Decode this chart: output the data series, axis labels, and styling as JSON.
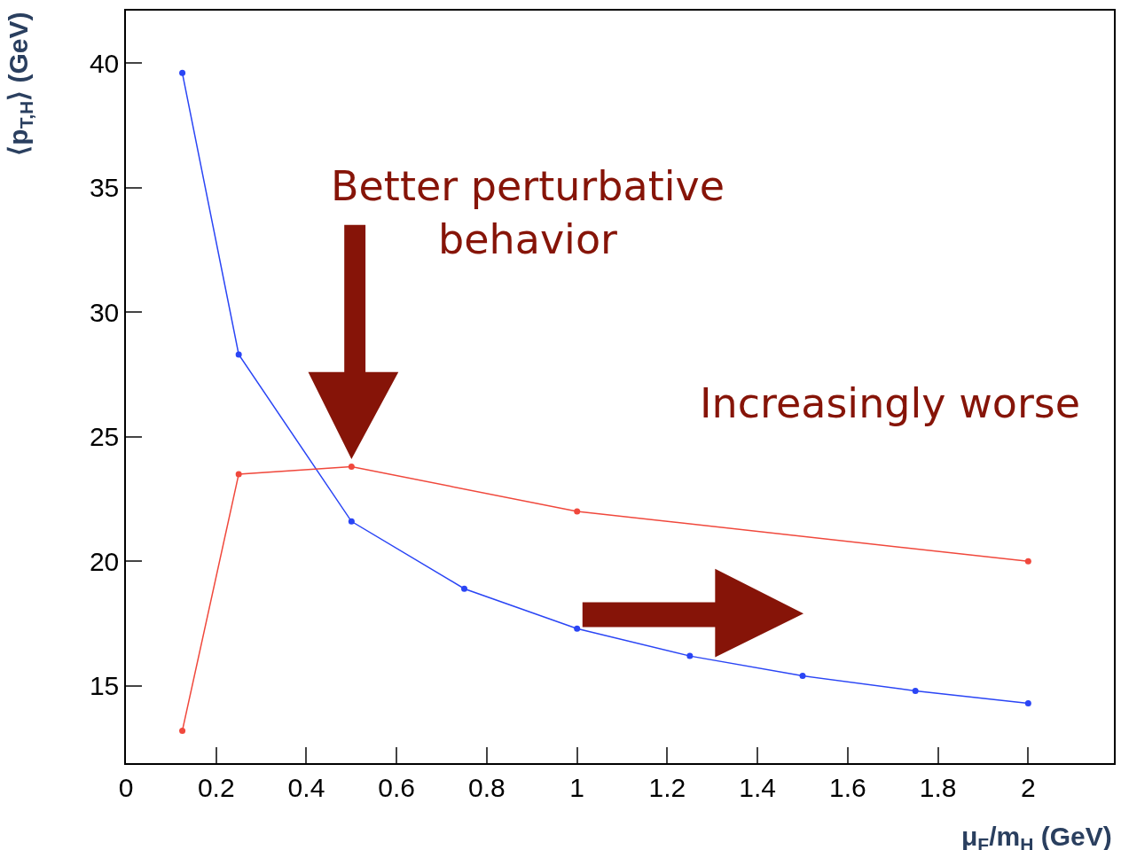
{
  "chart_data": {
    "type": "line",
    "xlabel": "μ$_{F}$/m$_{H}$ (GeV)",
    "ylabel": "⟨p$_{T,H}$⟩ (GeV)",
    "series": [
      {
        "color": "#2a45f5",
        "x": [
          0.125,
          0.25,
          0.5,
          0.75,
          1,
          1.25,
          1.5,
          1.75,
          2
        ],
        "values": [
          39.6,
          28.3,
          21.6,
          18.9,
          17.3,
          16.2,
          15.4,
          14.8,
          14.3
        ]
      },
      {
        "color": "#f0483c",
        "x": [
          0.125,
          0.25,
          0.5,
          1,
          2
        ],
        "values": [
          13.2,
          23.5,
          23.8,
          22.0,
          20.0
        ]
      }
    ],
    "xlim": [
      0,
      2.19
    ],
    "ylim": [
      11.9,
      42.1
    ],
    "xticks": [
      0,
      0.2,
      0.4,
      0.6,
      0.8,
      1,
      1.2,
      1.4,
      1.6,
      1.8,
      2
    ],
    "yticks": [
      15,
      20,
      25,
      30,
      35,
      40
    ],
    "marker": "circle",
    "line_style": "solid",
    "legend": false,
    "annotations": [
      "Better perturbative behavior",
      "Increasingly worse"
    ]
  }
}
